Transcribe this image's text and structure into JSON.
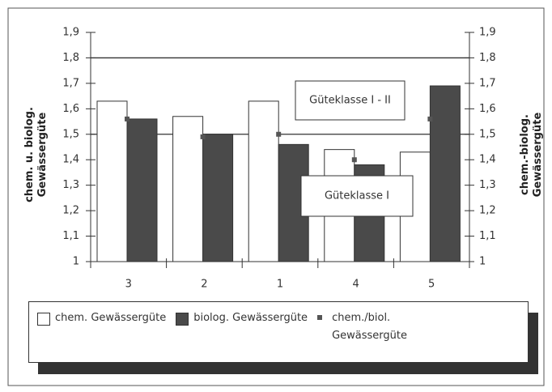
{
  "chart_data": {
    "type": "bar",
    "categories": [
      "3",
      "2",
      "1",
      "4",
      "5"
    ],
    "series": [
      {
        "name": "chem. Gewässergüte",
        "color": "#ffffff",
        "values": [
          1.63,
          1.57,
          1.63,
          1.44,
          1.43
        ]
      },
      {
        "name": "biolog. Gewässergüte",
        "color": "#4a4a4a",
        "values": [
          1.56,
          1.5,
          1.46,
          1.38,
          1.69
        ]
      },
      {
        "name": "chem./biol. Gewässergüte",
        "color": "#555555",
        "marker": "square",
        "values": [
          1.56,
          1.49,
          1.5,
          1.4,
          1.56
        ]
      }
    ],
    "y_label": "chem. u. biolog. Gewässergüte",
    "y2_label": "chem.-biolog. Gewässergüte",
    "ylim": [
      1,
      1.9
    ],
    "yticks": [
      {
        "value": 1,
        "label": "1"
      },
      {
        "value": 1.1,
        "label": "1,1"
      },
      {
        "value": 1.2,
        "label": "1,2"
      },
      {
        "value": 1.3,
        "label": "1,3"
      },
      {
        "value": 1.4,
        "label": "1,4"
      },
      {
        "value": 1.5,
        "label": "1,5"
      },
      {
        "value": 1.6,
        "label": "1,6"
      },
      {
        "value": 1.7,
        "label": "1,7"
      },
      {
        "value": 1.8,
        "label": "1,8"
      },
      {
        "value": 1.9,
        "label": "1,9"
      }
    ],
    "y2lim": [
      1,
      1.9
    ],
    "y2ticks": [
      {
        "value": 1,
        "label": "1"
      },
      {
        "value": 1.1,
        "label": "1,1"
      },
      {
        "value": 1.2,
        "label": "1,2"
      },
      {
        "value": 1.3,
        "label": "1,3"
      },
      {
        "value": 1.4,
        "label": "1,4"
      },
      {
        "value": 1.5,
        "label": "1,5"
      },
      {
        "value": 1.6,
        "label": "1,6"
      },
      {
        "value": 1.7,
        "label": "1,7"
      },
      {
        "value": 1.8,
        "label": "1,8"
      },
      {
        "value": 1.9,
        "label": "1,9"
      }
    ],
    "reference_lines": [
      {
        "value": 1.8,
        "label": "Güteklasse I - II"
      },
      {
        "value": 1.5,
        "label": "Güteklasse I"
      }
    ],
    "legend": "bottom"
  }
}
